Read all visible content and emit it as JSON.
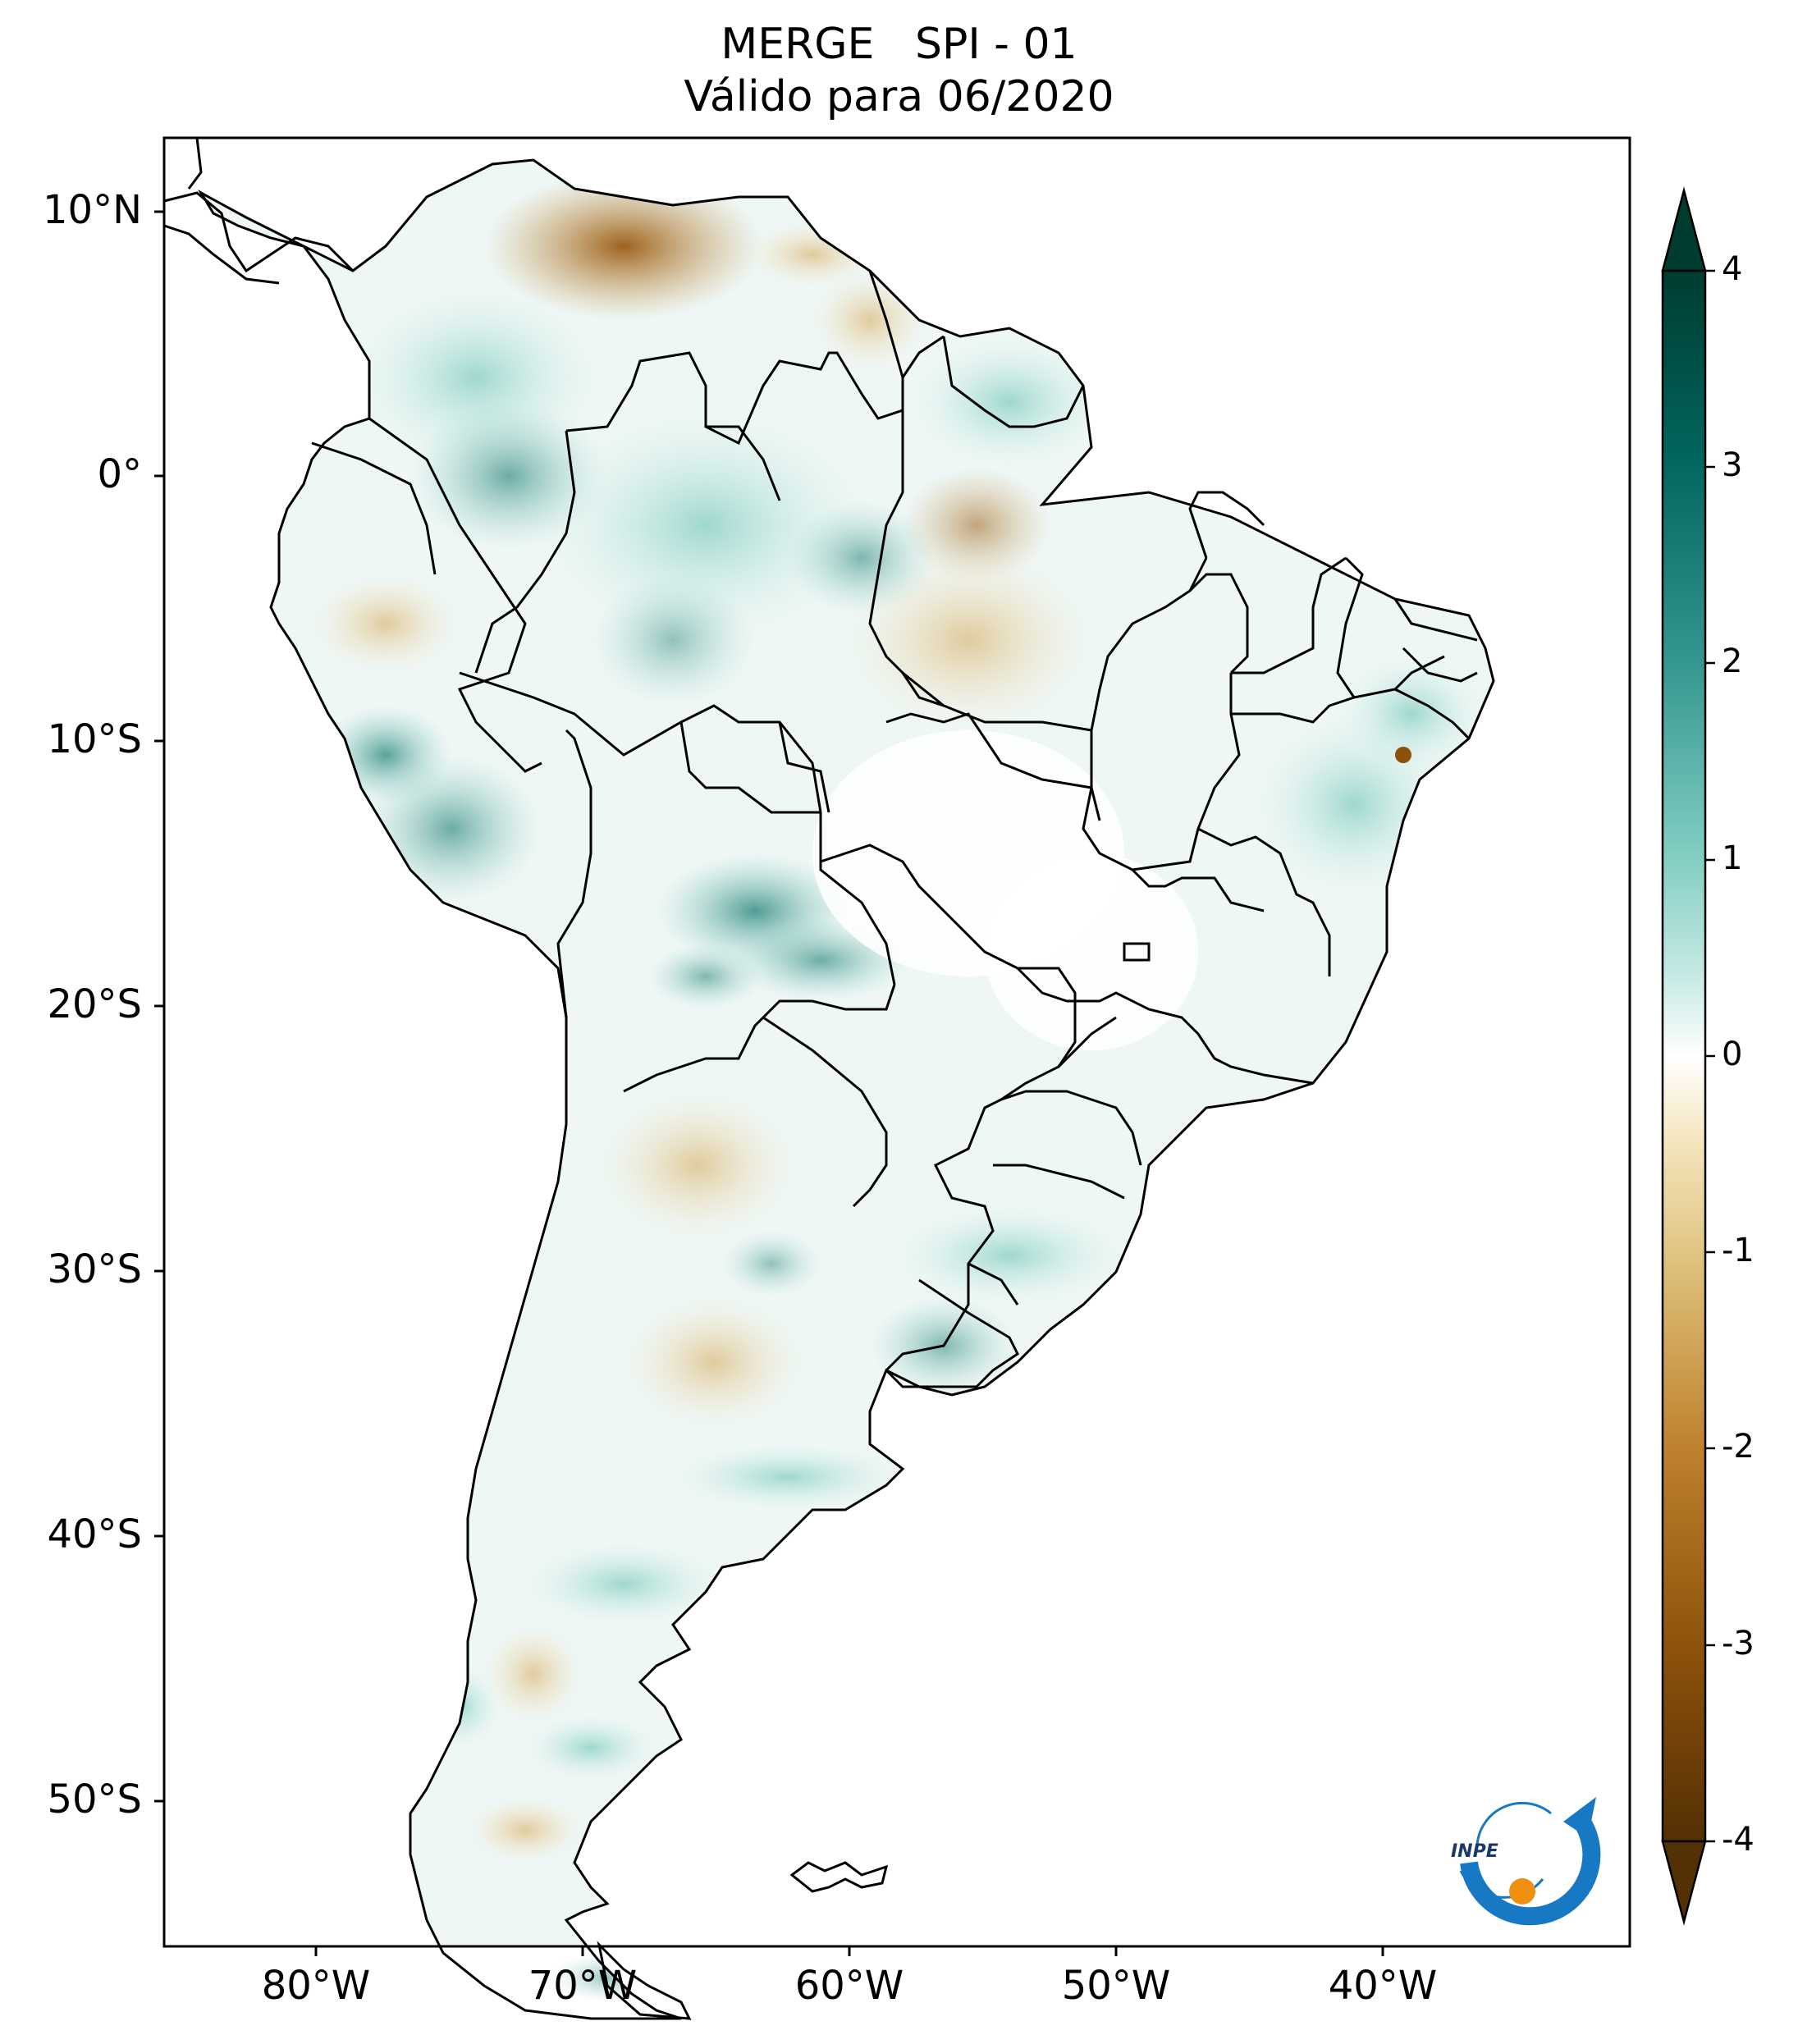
{
  "title": {
    "line1": "MERGE   SPI - 01",
    "line2": "Válido para 06/2020"
  },
  "map": {
    "lon_range": [
      -85,
      -30
    ],
    "lat_range": [
      -56,
      13
    ],
    "lat_labels": [
      "10°N",
      "0°",
      "10°S",
      "20°S",
      "30°S",
      "40°S",
      "50°S"
    ],
    "lon_labels": [
      "80°W",
      "70°W",
      "60°W",
      "50°W",
      "40°W"
    ],
    "variable": "SPI - 01",
    "source": "MERGE",
    "period": "06/2020"
  },
  "colorbar": {
    "ticks": [
      "4",
      "3",
      "2",
      "1",
      "0",
      "-1",
      "-2",
      "-3",
      "-4"
    ],
    "range": [
      -4,
      4
    ],
    "colors": {
      "dry_extreme": "#543005",
      "dry_strong": "#8c510a",
      "dry_moderate": "#bf812d",
      "dry_mild": "#dfc27d",
      "dry_light": "#f6e8c3",
      "neutral": "#ffffff",
      "wet_light": "#c7eae5",
      "wet_mild": "#80cdc1",
      "wet_moderate": "#35978f",
      "wet_strong": "#01665e",
      "wet_extreme": "#003c30"
    }
  },
  "logo": {
    "text": "INPE",
    "icon": "inpe-logo-icon"
  }
}
